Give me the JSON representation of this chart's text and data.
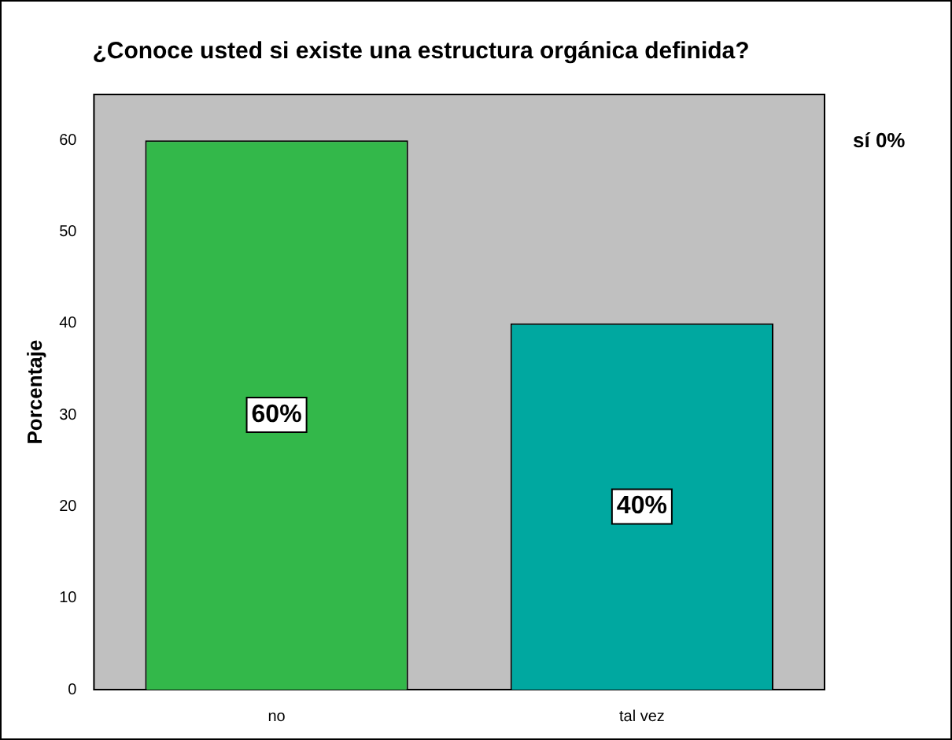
{
  "chart_data": {
    "type": "bar",
    "title": "¿Conoce usted si existe una estructura orgánica definida?",
    "ylabel": "Porcentaje",
    "categories": [
      "no",
      "tal vez"
    ],
    "values": [
      60,
      40
    ],
    "colors": [
      "#33b84a",
      "#00a8a0"
    ],
    "value_labels": [
      "60%",
      "40%"
    ],
    "ylim": [
      0,
      65
    ],
    "yticks": [
      0,
      10,
      20,
      30,
      40,
      50,
      60
    ],
    "annotations": [
      "sí 0%"
    ]
  }
}
